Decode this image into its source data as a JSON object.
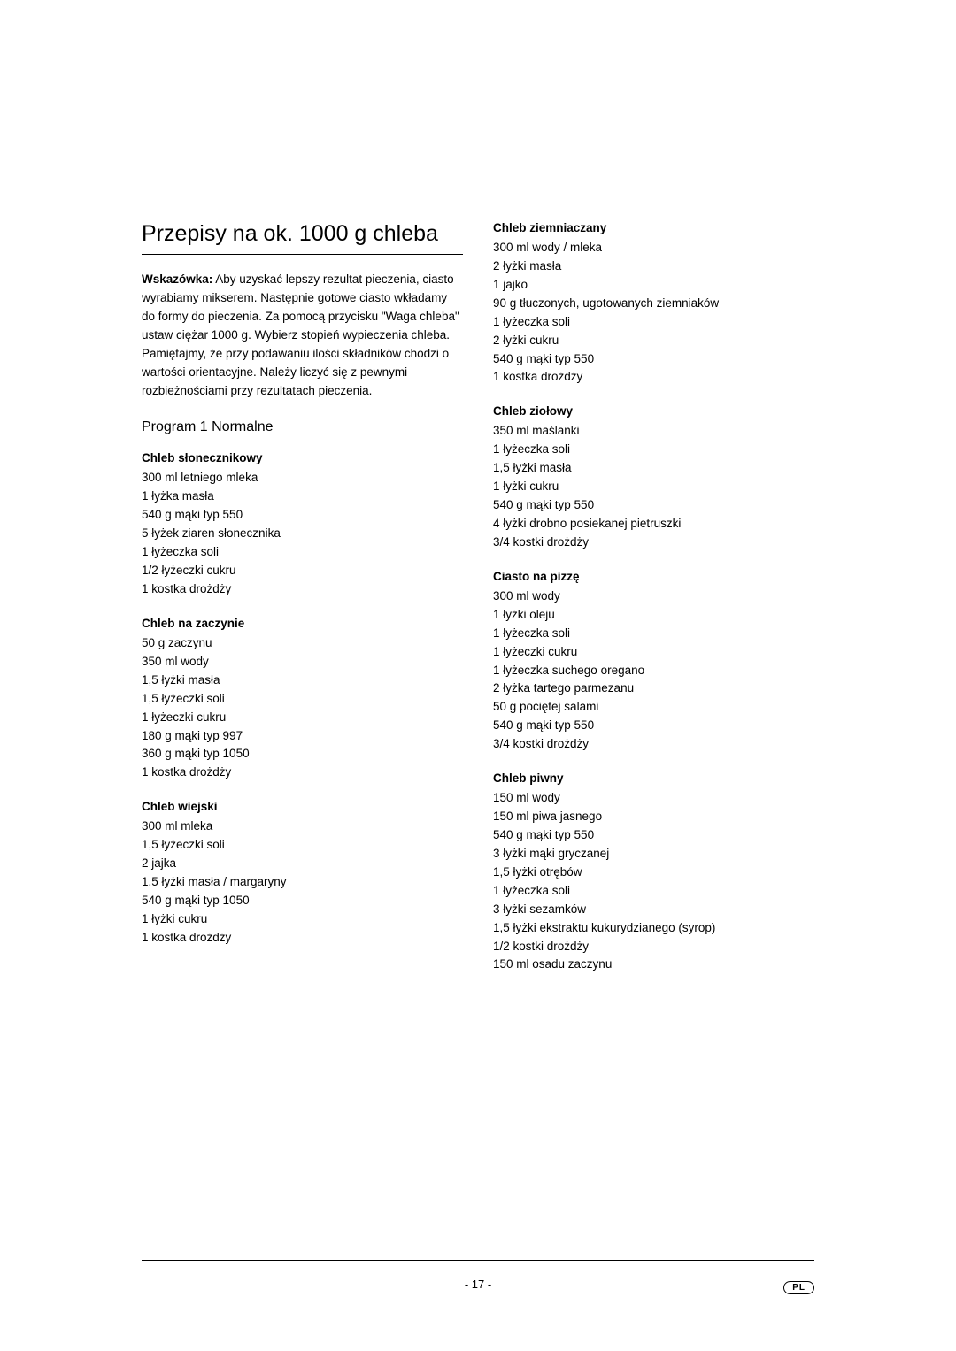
{
  "title": "Przepisy na ok. 1000 g chleba",
  "intro": {
    "lead": "Wskazówka:",
    "text": " Aby uzyskać lepszy rezultat pieczenia, ciasto wyrabiamy mikserem. Następnie gotowe ciasto wkładamy do formy do pieczenia. Za pomocą przycisku \"Waga chleba\" ustaw ciężar 1000 g. Wybierz stopień wypieczenia chleba. Pamiętajmy, że przy podawaniu ilości składników chodzi o wartości orientacyjne. Należy liczyć się z pewnymi rozbieżnościami przy rezultatach pieczenia."
  },
  "section_heading": "Program 1 Normalne",
  "left_recipes": [
    {
      "title": "Chleb słonecznikowy",
      "ingredients": [
        "300 ml letniego mleka",
        "1 łyżka masła",
        "540 g mąki typ 550",
        "5 łyżek ziaren słonecznika",
        "1 łyżeczka soli",
        "1/2 łyżeczki cukru",
        "1 kostka drożdży"
      ]
    },
    {
      "title": "Chleb na zaczynie",
      "ingredients": [
        "50 g zaczynu",
        "350 ml wody",
        "1,5 łyżki masła",
        "1,5 łyżeczki soli",
        "1 łyżeczki cukru",
        "180 g mąki  typ 997",
        "360 g mąki  typ 1050",
        "1 kostka drożdży"
      ]
    },
    {
      "title": "Chleb wiejski",
      "ingredients": [
        "300 ml mleka",
        "1,5 łyżeczki soli",
        "2 jajka",
        "1,5 łyżki masła / margaryny",
        "540 g mąki  typ 1050",
        "1 łyżki cukru",
        "1 kostka drożdży"
      ]
    }
  ],
  "right_recipes": [
    {
      "title": "Chleb ziemniaczany",
      "ingredients": [
        "300 ml wody / mleka",
        "2 łyżki masła",
        "1 jajko",
        "90 g tłuczonych, ugotowanych ziemniaków",
        "1 łyżeczka soli",
        "2 łyżki cukru",
        "540 g mąki typ 550",
        "1 kostka drożdży"
      ]
    },
    {
      "title": "Chleb ziołowy",
      "ingredients": [
        "350 ml maślanki",
        "1 łyżeczka soli",
        "1,5 łyżki masła",
        "1 łyżki cukru",
        "540 g mąki typ 550",
        "4 łyżki drobno posiekanej pietruszki",
        "3/4 kostki drożdży"
      ]
    },
    {
      "title": "Ciasto na pizzę",
      "ingredients": [
        "300 ml wody",
        "1 łyżki oleju",
        "1 łyżeczka soli",
        "1 łyżeczki cukru",
        "1 łyżeczka suchego oregano",
        "2 łyżka tartego parmezanu",
        "50 g pociętej salami",
        "540 g mąki typ 550",
        "3/4 kostki drożdży"
      ]
    },
    {
      "title": "Chleb piwny",
      "ingredients": [
        "150 ml wody",
        "150 ml piwa jasnego",
        "540 g mąki  typ 550",
        "3 łyżki mąki gryczanej",
        "1,5 łyżki otrębów",
        "1 łyżeczka soli",
        "3 łyżki sezamków",
        "1,5 łyżki ekstraktu kukurydzianego (syrop)",
        "1/2 kostki drożdży",
        "150 ml osadu zaczynu"
      ]
    }
  ],
  "page_number": "- 17 -",
  "language_badge": "PL"
}
